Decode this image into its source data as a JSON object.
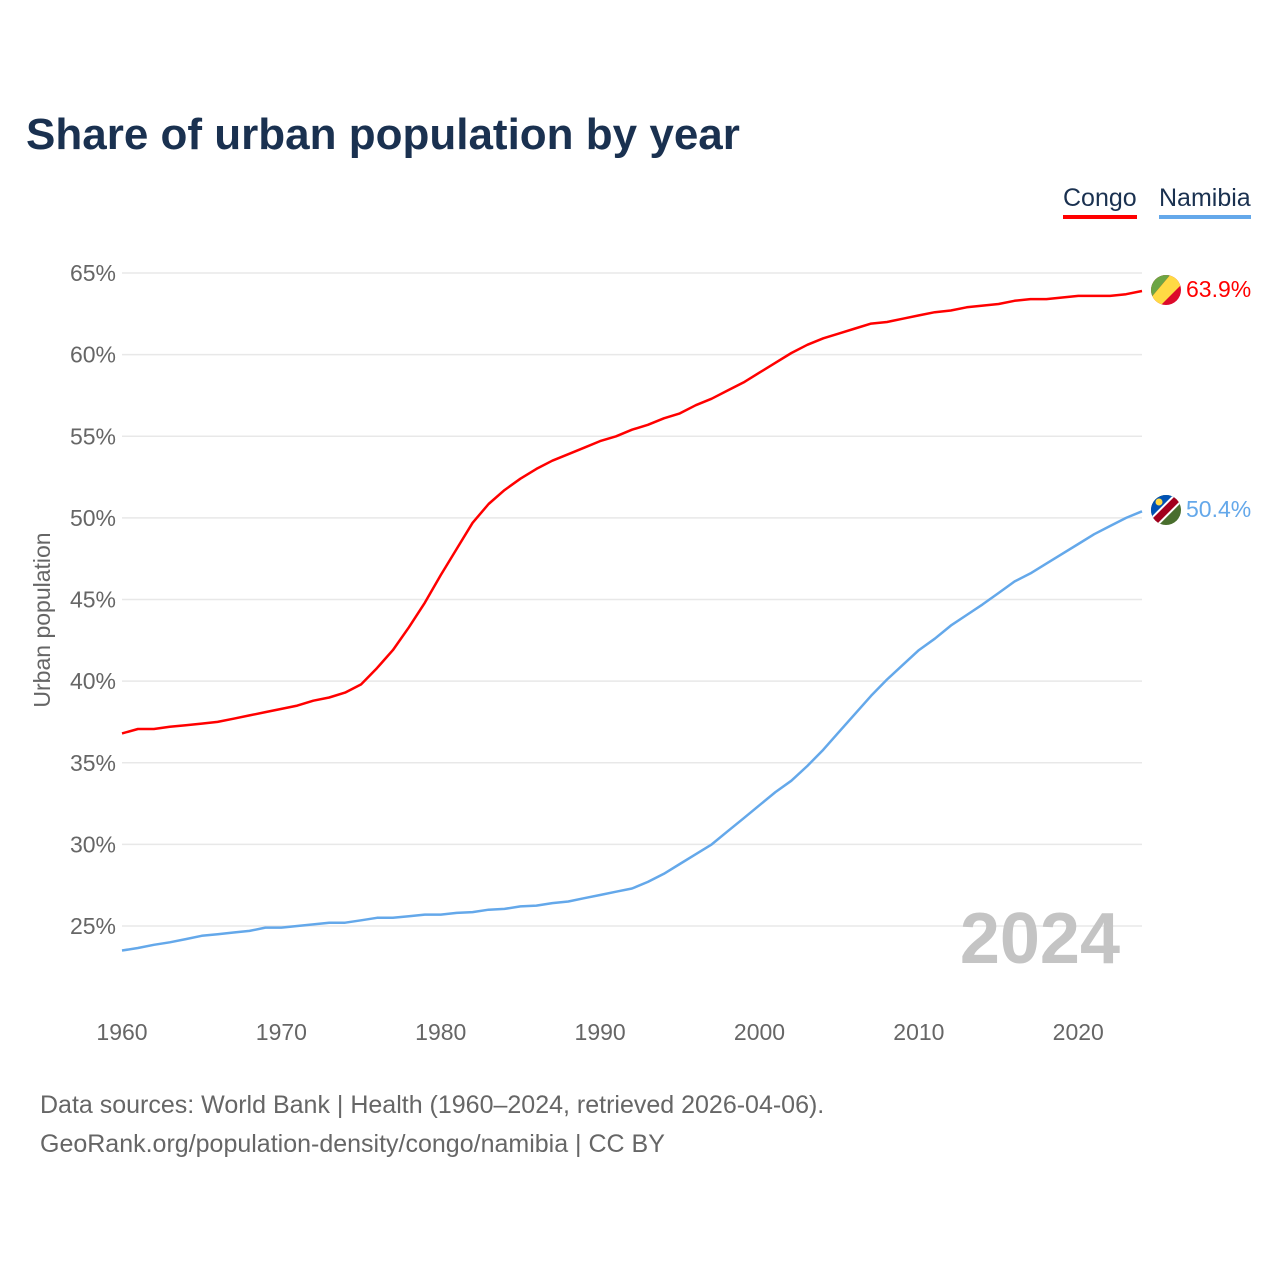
{
  "title": "Share of urban population by year",
  "legend": [
    {
      "name": "Congo",
      "color": "#ff0000"
    },
    {
      "name": "Namibia",
      "color": "#64a8ea"
    }
  ],
  "year_watermark": "2024",
  "footer": {
    "line1": "Data sources: World Bank | Health (1960–2024, retrieved 2026-04-06).",
    "line2": "GeoRank.org/population-density/congo/namibia | CC BY"
  },
  "end_labels": {
    "congo": "63.9%",
    "namibia": "50.4%"
  },
  "chart_data": {
    "type": "line",
    "title": "Share of urban population by year",
    "xlabel": "",
    "ylabel": "Urban population",
    "xlim": [
      1960,
      2024
    ],
    "ylim": [
      21,
      67
    ],
    "x_ticks": [
      1960,
      1970,
      1980,
      1990,
      2000,
      2010,
      2020
    ],
    "x_tick_labels": [
      "1960",
      "1970",
      "1980",
      "1990",
      "2000",
      "2010",
      "2020"
    ],
    "y_ticks": [
      25,
      30,
      35,
      40,
      45,
      50,
      55,
      60,
      65
    ],
    "y_tick_labels": [
      "25%",
      "30%",
      "35%",
      "40%",
      "45%",
      "50%",
      "55%",
      "60%",
      "65%"
    ],
    "grid": true,
    "legend_position": "top-right",
    "x": [
      1960,
      1961,
      1962,
      1963,
      1964,
      1965,
      1966,
      1967,
      1968,
      1969,
      1970,
      1971,
      1972,
      1973,
      1974,
      1975,
      1976,
      1977,
      1978,
      1979,
      1980,
      1981,
      1982,
      1983,
      1984,
      1985,
      1986,
      1987,
      1988,
      1989,
      1990,
      1991,
      1992,
      1993,
      1994,
      1995,
      1996,
      1997,
      1998,
      1999,
      2000,
      2001,
      2002,
      2003,
      2004,
      2005,
      2006,
      2007,
      2008,
      2009,
      2010,
      2011,
      2012,
      2013,
      2014,
      2015,
      2016,
      2017,
      2018,
      2019,
      2020,
      2021,
      2022,
      2023,
      2024
    ],
    "series": [
      {
        "name": "Congo",
        "color": "#ff0000",
        "values": [
          36.8,
          37.07,
          37.07,
          37.2,
          37.3,
          37.4,
          37.5,
          37.7,
          37.9,
          38.1,
          38.3,
          38.5,
          38.8,
          39.0,
          39.3,
          39.8,
          40.8,
          41.9,
          43.3,
          44.8,
          46.5,
          48.1,
          49.7,
          50.85,
          51.7,
          52.4,
          53.0,
          53.5,
          53.9,
          54.3,
          54.7,
          55.0,
          55.4,
          55.7,
          56.1,
          56.4,
          56.9,
          57.3,
          57.8,
          58.3,
          58.9,
          59.5,
          60.1,
          60.6,
          61.0,
          61.3,
          61.6,
          61.9,
          62.0,
          62.2,
          62.4,
          62.6,
          62.7,
          62.9,
          63.0,
          63.1,
          63.3,
          63.4,
          63.4,
          63.5,
          63.6,
          63.6,
          63.6,
          63.7,
          63.9
        ]
      },
      {
        "name": "Namibia",
        "color": "#64a8ea",
        "values": [
          23.5,
          23.65,
          23.85,
          24.0,
          24.2,
          24.4,
          24.5,
          24.6,
          24.7,
          24.9,
          24.9,
          25.0,
          25.1,
          25.2,
          25.2,
          25.35,
          25.5,
          25.5,
          25.6,
          25.7,
          25.7,
          25.8,
          25.85,
          26.0,
          26.05,
          26.2,
          26.25,
          26.4,
          26.5,
          26.7,
          26.9,
          27.1,
          27.3,
          27.7,
          28.2,
          28.8,
          29.4,
          30.0,
          30.8,
          31.6,
          32.4,
          33.2,
          33.9,
          34.8,
          35.8,
          36.9,
          38.0,
          39.1,
          40.1,
          41.0,
          41.9,
          42.6,
          43.4,
          44.05,
          44.7,
          45.4,
          46.1,
          46.6,
          47.2,
          47.8,
          48.4,
          49.0,
          49.5,
          50.0,
          50.4
        ]
      }
    ]
  }
}
